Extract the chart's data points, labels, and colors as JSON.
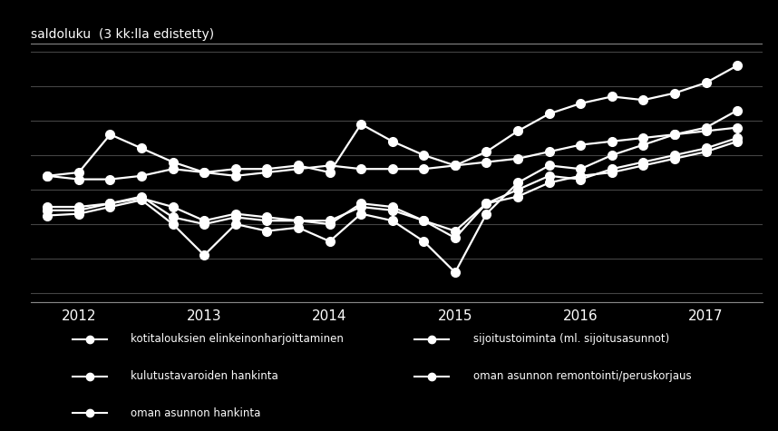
{
  "title": "saldoluku  (3 kk:lla edistetty)",
  "background_color": "#000000",
  "plot_bg": "#000000",
  "legend_bg": "#595959",
  "text_color": "#ffffff",
  "line_color": "#ffffff",
  "grid_color": "#444444",
  "border_color": "#888888",
  "ylim": [
    -65,
    85
  ],
  "xlim": [
    2011.62,
    2017.45
  ],
  "xtick_labels": [
    "2012",
    "2013",
    "2014",
    "2015",
    "2016",
    "2017"
  ],
  "xtick_positions": [
    2012,
    2013,
    2014,
    2015,
    2016,
    2017
  ],
  "ytick_positions": [
    -60,
    -40,
    -20,
    0,
    20,
    40,
    60,
    80
  ],
  "series": {
    "kotitalouksien elinkeinonharjoittaminen": {
      "x": [
        2011.75,
        2012.0,
        2012.25,
        2012.5,
        2012.75,
        2013.0,
        2013.25,
        2013.5,
        2013.75,
        2014.0,
        2014.25,
        2014.5,
        2014.75,
        2015.0,
        2015.25,
        2015.5,
        2015.75,
        2016.0,
        2016.25,
        2016.5,
        2016.75,
        2017.0,
        2017.25
      ],
      "y": [
        8,
        6,
        6,
        8,
        12,
        10,
        8,
        10,
        12,
        14,
        12,
        12,
        12,
        14,
        16,
        18,
        22,
        26,
        28,
        30,
        32,
        34,
        36
      ]
    },
    "sijoitustoiminta (ml. sijoitusasunnot)": {
      "x": [
        2011.75,
        2012.0,
        2012.25,
        2012.5,
        2012.75,
        2013.0,
        2013.25,
        2013.5,
        2013.75,
        2014.0,
        2014.25,
        2014.5,
        2014.75,
        2015.0,
        2015.25,
        2015.5,
        2015.75,
        2016.0,
        2016.25,
        2016.5,
        2016.75,
        2017.0,
        2017.25
      ],
      "y": [
        8,
        10,
        32,
        24,
        16,
        10,
        12,
        12,
        14,
        10,
        38,
        28,
        20,
        14,
        22,
        34,
        44,
        50,
        54,
        52,
        56,
        62,
        72
      ]
    },
    "kulutustavaroiden hankinta": {
      "x": [
        2011.75,
        2012.0,
        2012.25,
        2012.5,
        2012.75,
        2013.0,
        2013.25,
        2013.5,
        2013.75,
        2014.0,
        2014.25,
        2014.5,
        2014.75,
        2015.0,
        2015.25,
        2015.5,
        2015.75,
        2016.0,
        2016.25,
        2016.5,
        2016.75,
        2017.0,
        2017.25
      ],
      "y": [
        -10,
        -10,
        -8,
        -5,
        -10,
        -18,
        -14,
        -16,
        -18,
        -18,
        -10,
        -12,
        -18,
        -24,
        -8,
        -4,
        4,
        8,
        10,
        14,
        18,
        22,
        28
      ]
    },
    "oman asunnon remontointi/peruskorjaus": {
      "x": [
        2011.75,
        2012.0,
        2012.25,
        2012.5,
        2012.75,
        2013.0,
        2013.25,
        2013.5,
        2013.75,
        2014.0,
        2014.25,
        2014.5,
        2014.75,
        2015.0,
        2015.25,
        2015.5,
        2015.75,
        2016.0,
        2016.25,
        2016.5,
        2016.75,
        2017.0,
        2017.25
      ],
      "y": [
        -12,
        -12,
        -8,
        -4,
        -16,
        -20,
        -16,
        -18,
        -18,
        -20,
        -8,
        -10,
        -18,
        -28,
        -8,
        0,
        8,
        6,
        12,
        16,
        20,
        24,
        30
      ]
    },
    "oman asunnon hankinta": {
      "x": [
        2011.75,
        2012.0,
        2012.25,
        2012.5,
        2012.75,
        2013.0,
        2013.25,
        2013.5,
        2013.75,
        2014.0,
        2014.25,
        2014.5,
        2014.75,
        2015.0,
        2015.25,
        2015.5,
        2015.75,
        2016.0,
        2016.25,
        2016.5,
        2016.75,
        2017.0,
        2017.25
      ],
      "y": [
        -15,
        -14,
        -10,
        -6,
        -20,
        -38,
        -20,
        -24,
        -22,
        -30,
        -14,
        -18,
        -30,
        -48,
        -14,
        4,
        14,
        12,
        20,
        26,
        32,
        36,
        46
      ]
    }
  },
  "legend_entries": [
    [
      "kotitalouksien elinkeinonharjoittaminen",
      "sijoitustoiminta (ml. sijoitusasunnot)"
    ],
    [
      "kulutustavaroiden hankinta",
      "oman asunnon remontointi/peruskorjaus"
    ],
    [
      "oman asunnon hankinta",
      ""
    ]
  ]
}
